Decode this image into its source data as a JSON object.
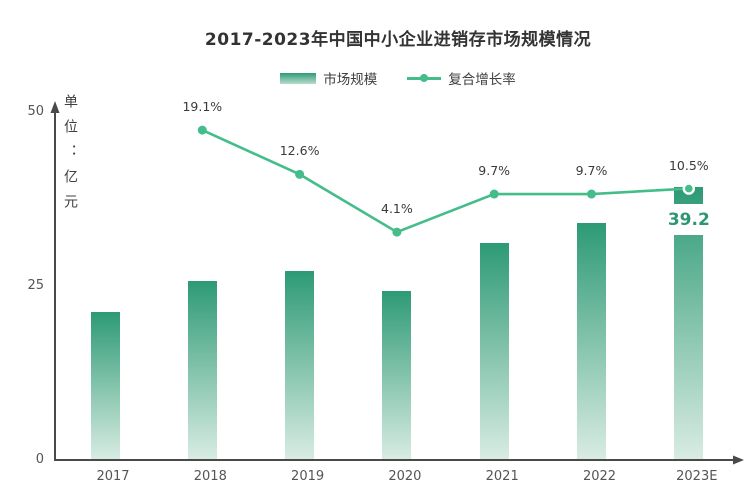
{
  "chart": {
    "title": "2017-2023年中国中小企业进销存市场规模情况",
    "unit_label": "单位：亿元",
    "legend": [
      {
        "label": "市场规模",
        "type": "bar"
      },
      {
        "label": "复合增长率",
        "type": "line"
      }
    ]
  },
  "chart_data": {
    "type": "combo",
    "title": "2017-2023年中国中小企业进销存市场规模情况",
    "categories": [
      "2017",
      "2018",
      "2019",
      "2020",
      "2021",
      "2022",
      "2023E"
    ],
    "series": [
      {
        "name": "市场规模",
        "type": "bar",
        "unit": "亿元",
        "values": [
          21.3,
          25.7,
          27.2,
          24.3,
          31.2,
          34.1,
          39.2
        ]
      },
      {
        "name": "复合增长率",
        "type": "line",
        "unit": "%",
        "values": [
          null,
          19.1,
          12.6,
          4.1,
          9.7,
          9.7,
          10.5
        ],
        "labels": [
          "",
          "19.1%",
          "12.6%",
          "4.1%",
          "9.7%",
          "9.7%",
          "10.5%"
        ]
      }
    ],
    "bar_value_label": {
      "index": 6,
      "category": "2023E",
      "text": "39.2"
    },
    "ylabel": "单位：亿元",
    "yticks": [
      0,
      25,
      50
    ],
    "ylim": [
      0,
      50
    ],
    "grid": false,
    "legend_position": "top",
    "colors": {
      "bar_top": "#2d9a75",
      "bar_bottom": "#d9ece3",
      "line": "#44bd8b",
      "value_label": "#2f9674",
      "axis": "#4a4a4a"
    }
  }
}
